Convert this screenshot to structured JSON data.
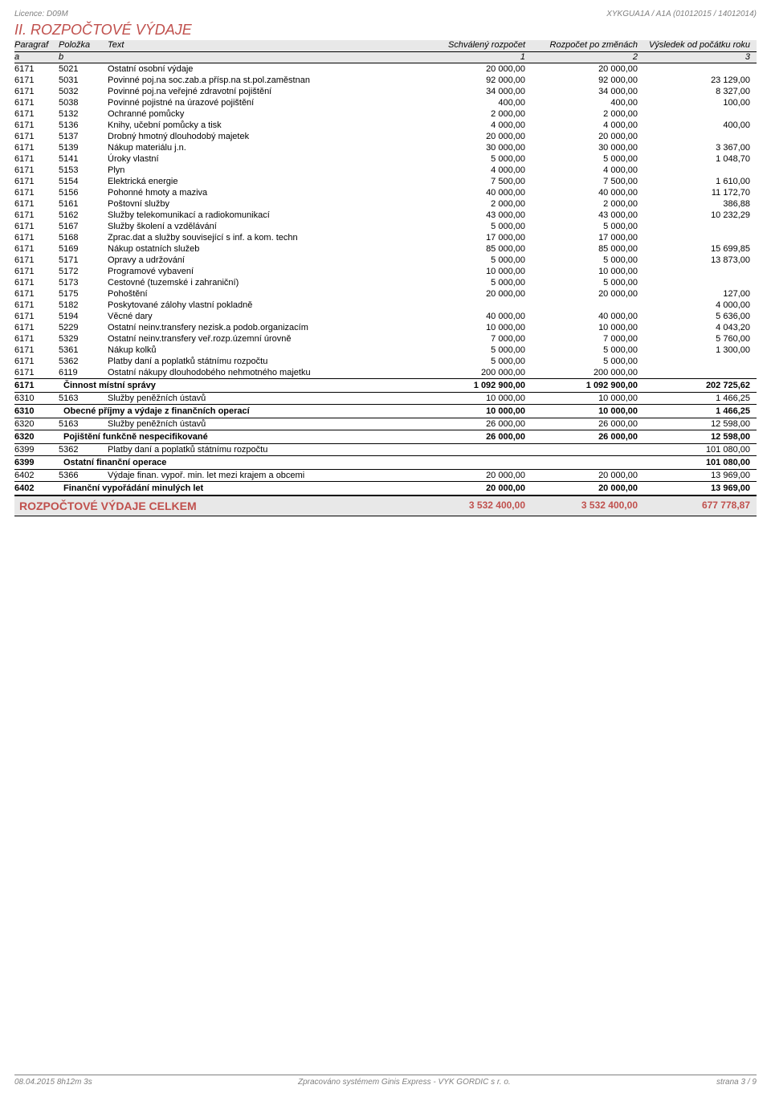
{
  "license": "Licence: D09M",
  "header_right": "XYKGUA1A / A1A (01012015 / 14012014)",
  "section_title": "II. ROZPOČTOVÉ VÝDAJE",
  "columns": {
    "paragraf": "Paragraf",
    "polozka": "Položka",
    "text": "Text",
    "schvaleny": "Schválený rozpočet",
    "pozmenach": "Rozpočet po změnách",
    "vysledek": "Výsledek od počátku roku",
    "a": "a",
    "b": "b",
    "c1": "1",
    "c2": "2",
    "c3": "3"
  },
  "rows": [
    {
      "para": "6171",
      "pol": "5021",
      "text": "Ostatní osobní výdaje",
      "v1": "20 000,00",
      "v2": "20 000,00",
      "v3": ""
    },
    {
      "para": "6171",
      "pol": "5031",
      "text": "Povinné poj.na soc.zab.a přísp.na st.pol.zaměstnan",
      "v1": "92 000,00",
      "v2": "92 000,00",
      "v3": "23 129,00"
    },
    {
      "para": "6171",
      "pol": "5032",
      "text": "Povinné poj.na veřejné zdravotní pojištění",
      "v1": "34 000,00",
      "v2": "34 000,00",
      "v3": "8 327,00"
    },
    {
      "para": "6171",
      "pol": "5038",
      "text": "Povinné pojistné na úrazové pojištění",
      "v1": "400,00",
      "v2": "400,00",
      "v3": "100,00"
    },
    {
      "para": "6171",
      "pol": "5132",
      "text": "Ochranné pomůcky",
      "v1": "2 000,00",
      "v2": "2 000,00",
      "v3": ""
    },
    {
      "para": "6171",
      "pol": "5136",
      "text": "Knihy, učební pomůcky a tisk",
      "v1": "4 000,00",
      "v2": "4 000,00",
      "v3": "400,00"
    },
    {
      "para": "6171",
      "pol": "5137",
      "text": "Drobný hmotný dlouhodobý majetek",
      "v1": "20 000,00",
      "v2": "20 000,00",
      "v3": ""
    },
    {
      "para": "6171",
      "pol": "5139",
      "text": "Nákup materiálu j.n.",
      "v1": "30 000,00",
      "v2": "30 000,00",
      "v3": "3 367,00"
    },
    {
      "para": "6171",
      "pol": "5141",
      "text": "Úroky vlastní",
      "v1": "5 000,00",
      "v2": "5 000,00",
      "v3": "1 048,70"
    },
    {
      "para": "6171",
      "pol": "5153",
      "text": "Plyn",
      "v1": "4 000,00",
      "v2": "4 000,00",
      "v3": ""
    },
    {
      "para": "6171",
      "pol": "5154",
      "text": "Elektrická energie",
      "v1": "7 500,00",
      "v2": "7 500,00",
      "v3": "1 610,00"
    },
    {
      "para": "6171",
      "pol": "5156",
      "text": "Pohonné hmoty a maziva",
      "v1": "40 000,00",
      "v2": "40 000,00",
      "v3": "11 172,70"
    },
    {
      "para": "6171",
      "pol": "5161",
      "text": "Poštovní služby",
      "v1": "2 000,00",
      "v2": "2 000,00",
      "v3": "386,88"
    },
    {
      "para": "6171",
      "pol": "5162",
      "text": "Služby telekomunikací a radiokomunikací",
      "v1": "43 000,00",
      "v2": "43 000,00",
      "v3": "10 232,29"
    },
    {
      "para": "6171",
      "pol": "5167",
      "text": "Služby školení a vzdělávání",
      "v1": "5 000,00",
      "v2": "5 000,00",
      "v3": ""
    },
    {
      "para": "6171",
      "pol": "5168",
      "text": "Zprac.dat a služby související s inf. a kom. techn",
      "v1": "17 000,00",
      "v2": "17 000,00",
      "v3": ""
    },
    {
      "para": "6171",
      "pol": "5169",
      "text": "Nákup ostatních služeb",
      "v1": "85 000,00",
      "v2": "85 000,00",
      "v3": "15 699,85"
    },
    {
      "para": "6171",
      "pol": "5171",
      "text": "Opravy a udržování",
      "v1": "5 000,00",
      "v2": "5 000,00",
      "v3": "13 873,00"
    },
    {
      "para": "6171",
      "pol": "5172",
      "text": "Programové vybavení",
      "v1": "10 000,00",
      "v2": "10 000,00",
      "v3": ""
    },
    {
      "para": "6171",
      "pol": "5173",
      "text": "Cestovné (tuzemské i zahraniční)",
      "v1": "5 000,00",
      "v2": "5 000,00",
      "v3": ""
    },
    {
      "para": "6171",
      "pol": "5175",
      "text": "Pohoštění",
      "v1": "20 000,00",
      "v2": "20 000,00",
      "v3": "127,00"
    },
    {
      "para": "6171",
      "pol": "5182",
      "text": "Poskytované zálohy vlastní pokladně",
      "v1": "",
      "v2": "",
      "v3": "4 000,00"
    },
    {
      "para": "6171",
      "pol": "5194",
      "text": "Věcné dary",
      "v1": "40 000,00",
      "v2": "40 000,00",
      "v3": "5 636,00"
    },
    {
      "para": "6171",
      "pol": "5229",
      "text": "Ostatní neinv.transfery nezisk.a podob.organizacím",
      "v1": "10 000,00",
      "v2": "10 000,00",
      "v3": "4 043,20"
    },
    {
      "para": "6171",
      "pol": "5329",
      "text": "Ostatní neinv.transfery veř.rozp.územní úrovně",
      "v1": "7 000,00",
      "v2": "7 000,00",
      "v3": "5 760,00"
    },
    {
      "para": "6171",
      "pol": "5361",
      "text": "Nákup kolků",
      "v1": "5 000,00",
      "v2": "5 000,00",
      "v3": "1 300,00"
    },
    {
      "para": "6171",
      "pol": "5362",
      "text": "Platby daní a poplatků státnímu rozpočtu",
      "v1": "5 000,00",
      "v2": "5 000,00",
      "v3": ""
    },
    {
      "para": "6171",
      "pol": "6119",
      "text": "Ostatní nákupy dlouhodobého nehmotného majetku",
      "v1": "200 000,00",
      "v2": "200 000,00",
      "v3": ""
    }
  ],
  "summaries": [
    {
      "para": "6171",
      "text": "Činnost místní správy",
      "v1": "1 092 900,00",
      "v2": "1 092 900,00",
      "v3": "202 725,62"
    }
  ],
  "rows2": [
    {
      "para": "6310",
      "pol": "5163",
      "text": "Služby peněžních ústavů",
      "v1": "10 000,00",
      "v2": "10 000,00",
      "v3": "1 466,25"
    }
  ],
  "summaries2": [
    {
      "para": "6310",
      "text": "Obecné příjmy a výdaje z finančních operací",
      "v1": "10 000,00",
      "v2": "10 000,00",
      "v3": "1 466,25"
    }
  ],
  "rows3": [
    {
      "para": "6320",
      "pol": "5163",
      "text": "Služby peněžních ústavů",
      "v1": "26 000,00",
      "v2": "26 000,00",
      "v3": "12 598,00"
    }
  ],
  "summaries3": [
    {
      "para": "6320",
      "text": "Pojištění funkčně nespecifikované",
      "v1": "26 000,00",
      "v2": "26 000,00",
      "v3": "12 598,00"
    }
  ],
  "rows4": [
    {
      "para": "6399",
      "pol": "5362",
      "text": "Platby daní a poplatků státnímu rozpočtu",
      "v1": "",
      "v2": "",
      "v3": "101 080,00"
    }
  ],
  "summaries4": [
    {
      "para": "6399",
      "text": "Ostatní finanční operace",
      "v1": "",
      "v2": "",
      "v3": "101 080,00"
    }
  ],
  "rows5": [
    {
      "para": "6402",
      "pol": "5366",
      "text": "Výdaje finan. vypoř. min. let mezi krajem a obcemi",
      "v1": "20 000,00",
      "v2": "20 000,00",
      "v3": "13 969,00"
    }
  ],
  "summaries5": [
    {
      "para": "6402",
      "text": "Finanční vypořádání minulých let",
      "v1": "20 000,00",
      "v2": "20 000,00",
      "v3": "13 969,00"
    }
  ],
  "total": {
    "label": "ROZPOČTOVÉ VÝDAJE CELKEM",
    "v1": "3 532 400,00",
    "v2": "3 532 400,00",
    "v3": "677 778,87"
  },
  "footer": {
    "left": "08.04.2015 8h12m 3s",
    "center": "Zpracováno systémem Ginis Express - VYK GORDIC s r. o.",
    "right": "strana 3 / 9"
  }
}
